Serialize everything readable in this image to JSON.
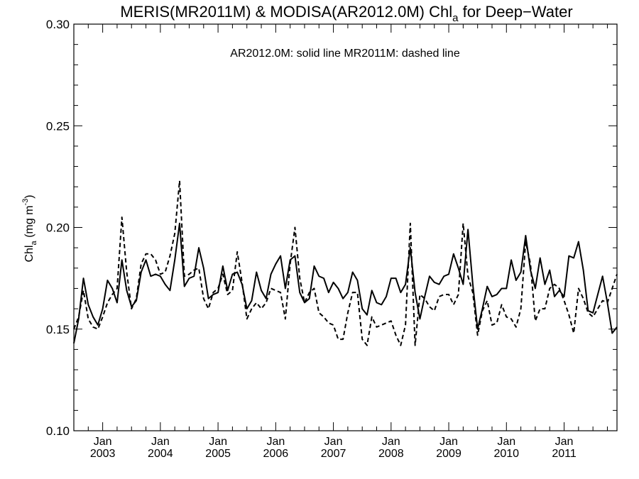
{
  "chart_data": {
    "type": "line",
    "title_main": "MERIS(MR2011M) & MODISA(AR2012.0M)  Chl",
    "title_sub": "a",
    "title_tail": " for Deep−Water",
    "annotation": "AR2012.0M: solid line   MR2011M: dashed line",
    "ylabel_main": "Chl",
    "ylabel_sub": "a",
    "ylabel_unit": " (mg m",
    "ylabel_sup": "-3",
    "ylabel_close": ")",
    "ylim": [
      0.1,
      0.3
    ],
    "yticks": [
      "0.10",
      "0.15",
      "0.20",
      "0.25",
      "0.30"
    ],
    "xlim": [
      "2002-07",
      "2011-12"
    ],
    "xticks_month": "Jan",
    "xticks_years": [
      "2003",
      "2004",
      "2005",
      "2006",
      "2007",
      "2008",
      "2009",
      "2010",
      "2011"
    ],
    "x_start": "2002-07",
    "series": [
      {
        "label": "AR2012.0M",
        "style": "solid",
        "values": [
          0.143,
          0.155,
          0.175,
          0.162,
          0.156,
          0.152,
          0.16,
          0.174,
          0.17,
          0.163,
          0.184,
          0.169,
          0.161,
          0.164,
          0.178,
          0.184,
          0.176,
          0.177,
          0.176,
          0.172,
          0.169,
          0.184,
          0.202,
          0.171,
          0.175,
          0.176,
          0.19,
          0.18,
          0.165,
          0.167,
          0.168,
          0.181,
          0.169,
          0.177,
          0.178,
          0.172,
          0.16,
          0.164,
          0.178,
          0.169,
          0.165,
          0.177,
          0.182,
          0.186,
          0.17,
          0.184,
          0.186,
          0.168,
          0.163,
          0.165,
          0.181,
          0.176,
          0.175,
          0.168,
          0.173,
          0.17,
          0.165,
          0.168,
          0.178,
          0.174,
          0.16,
          0.157,
          0.169,
          0.163,
          0.162,
          0.166,
          0.175,
          0.175,
          0.168,
          0.172,
          0.19,
          0.168,
          0.155,
          0.166,
          0.176,
          0.173,
          0.172,
          0.176,
          0.177,
          0.187,
          0.18,
          0.172,
          0.199,
          0.172,
          0.15,
          0.16,
          0.171,
          0.166,
          0.167,
          0.17,
          0.17,
          0.184,
          0.174,
          0.178,
          0.196,
          0.179,
          0.17,
          0.185,
          0.172,
          0.179,
          0.166,
          0.169,
          0.166,
          0.186,
          0.185,
          0.193,
          0.179,
          0.159,
          0.158,
          0.167,
          0.176,
          0.163,
          0.148,
          0.151
        ]
      },
      {
        "label": "MR2011M",
        "style": "dashed",
        "values": [
          0.15,
          0.156,
          0.169,
          0.155,
          0.151,
          0.15,
          0.156,
          0.163,
          0.167,
          0.17,
          0.205,
          0.178,
          0.16,
          0.165,
          0.182,
          0.187,
          0.187,
          0.184,
          0.177,
          0.178,
          0.186,
          0.197,
          0.223,
          0.176,
          0.177,
          0.179,
          0.18,
          0.165,
          0.16,
          0.168,
          0.17,
          0.177,
          0.167,
          0.169,
          0.188,
          0.173,
          0.155,
          0.16,
          0.163,
          0.16,
          0.163,
          0.17,
          0.169,
          0.168,
          0.155,
          0.182,
          0.2,
          0.175,
          0.163,
          0.168,
          0.17,
          0.158,
          0.156,
          0.153,
          0.152,
          0.145,
          0.145,
          0.158,
          0.168,
          0.168,
          0.145,
          0.142,
          0.156,
          0.151,
          0.152,
          0.153,
          0.154,
          0.147,
          0.142,
          0.152,
          0.202,
          0.142,
          0.167,
          0.165,
          0.161,
          0.159,
          0.166,
          0.167,
          0.167,
          0.162,
          0.167,
          0.202,
          0.176,
          0.168,
          0.147,
          0.159,
          0.164,
          0.152,
          0.153,
          0.162,
          0.156,
          0.155,
          0.151,
          0.16,
          0.193,
          0.182,
          0.154,
          0.16,
          0.16,
          0.17,
          0.172,
          0.17,
          0.164,
          0.157,
          0.148,
          0.17,
          0.165,
          0.158,
          0.156,
          0.16,
          0.164,
          0.163,
          0.17,
          0.177
        ]
      }
    ]
  }
}
